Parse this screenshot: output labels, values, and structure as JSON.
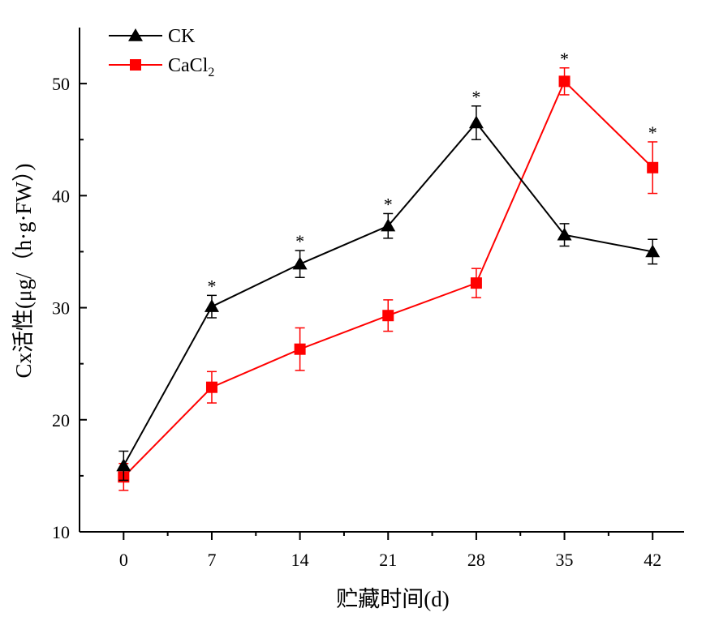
{
  "chart_data": {
    "type": "line",
    "xlabel": "贮藏时间(d)",
    "ylabel": "Cx活性(μg/（h·g·FW）)",
    "x": [
      0,
      7,
      14,
      21,
      28,
      35,
      42
    ],
    "x_tick_labels": [
      "0",
      "7",
      "14",
      "21",
      "28",
      "35",
      "42"
    ],
    "xlim": [
      -3.5,
      44.5
    ],
    "ylim": [
      10,
      55
    ],
    "y_ticks": [
      10,
      20,
      30,
      40,
      50
    ],
    "y_tick_labels": [
      "10",
      "20",
      "30",
      "40",
      "50"
    ],
    "grid": false,
    "legend_position": "top-left",
    "series": [
      {
        "name": "CK",
        "name_sub": "",
        "color": "#000000",
        "marker": "triangle",
        "values": [
          15.9,
          30.1,
          33.9,
          37.3,
          46.5,
          36.5,
          35.0
        ],
        "errors": [
          1.3,
          1.0,
          1.2,
          1.1,
          1.5,
          1.0,
          1.1
        ],
        "significance": [
          "",
          "*",
          "*",
          "*",
          "*",
          "",
          ""
        ]
      },
      {
        "name": "CaCl",
        "name_sub": "2",
        "color": "#ff0000",
        "marker": "square",
        "values": [
          14.9,
          22.9,
          26.3,
          29.3,
          32.2,
          50.2,
          42.5
        ],
        "errors": [
          1.2,
          1.4,
          1.9,
          1.4,
          1.3,
          1.2,
          2.3
        ],
        "significance": [
          "",
          "",
          "",
          "",
          "",
          "*",
          "*"
        ]
      }
    ]
  }
}
